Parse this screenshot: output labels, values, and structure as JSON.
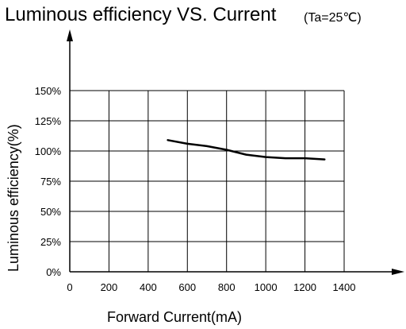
{
  "title": "Luminous efficiency VS. Current",
  "subtitle": "(Ta=25℃)",
  "chart_data": {
    "type": "line",
    "title": "Luminous efficiency VS. Current(Ta=25℃)",
    "xlabel": "Forward Current(mA)",
    "ylabel": "Luminous efficiency(%)",
    "xlim": [
      0,
      1400
    ],
    "ylim": [
      0,
      150
    ],
    "xticks": [
      0,
      200,
      400,
      600,
      800,
      1000,
      1200,
      1400
    ],
    "xtick_labels": [
      "0",
      "200",
      "400",
      "600",
      "800",
      "1000",
      "1200",
      "1400"
    ],
    "yticks": [
      0,
      25,
      50,
      75,
      100,
      125,
      150
    ],
    "ytick_labels": [
      "0%",
      "25%",
      "50%",
      "75%",
      "100%",
      "125%",
      "150%"
    ],
    "grid": true,
    "series": [
      {
        "x": [
          500,
          600,
          700,
          800,
          900,
          1000,
          1100,
          1200,
          1300
        ],
        "y": [
          109,
          106,
          104,
          101,
          97,
          95,
          94,
          94,
          93
        ]
      }
    ]
  }
}
